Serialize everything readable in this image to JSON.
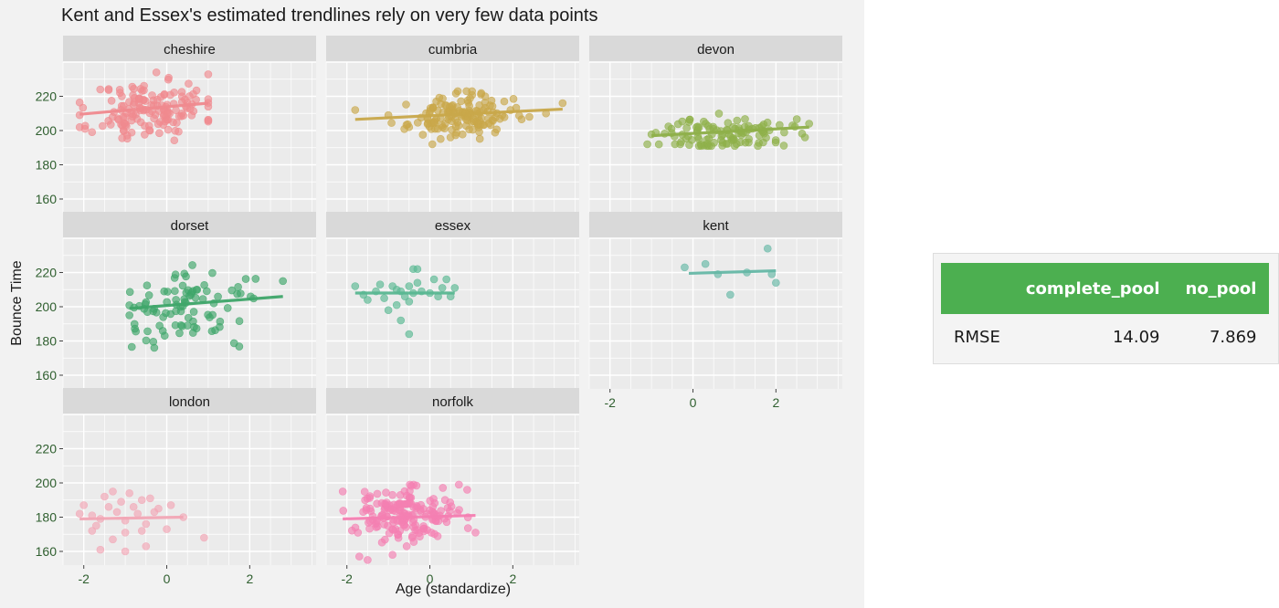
{
  "chart_data": {
    "type": "scatter",
    "title": "Kent and Essex's estimated trendlines rely on very few data points",
    "xlabel": "Age (standardize)",
    "ylabel": "Bounce Time",
    "xlim": [
      -2.5,
      3.6
    ],
    "ylim": [
      152,
      240
    ],
    "xticks": [
      -2,
      0,
      2
    ],
    "yticks": [
      160,
      180,
      200,
      220
    ],
    "grid": true,
    "facets": [
      {
        "name": "cheshire",
        "color": "#f08a8f",
        "trend": [
          [
            -2.1,
            209.5
          ],
          [
            1.0,
            216
          ]
        ],
        "cloud": {
          "n": 150,
          "cx": -0.4,
          "sx": 0.7,
          "ymin": 190,
          "ymax": 234,
          "by": 212,
          "slope": 2.1,
          "sy": 9,
          "seed": 11
        },
        "points": []
      },
      {
        "name": "cumbria",
        "color": "#c9a84a",
        "trend": [
          [
            -1.8,
            206.5
          ],
          [
            3.2,
            212.5
          ]
        ],
        "cloud": {
          "n": 150,
          "cx": 0.7,
          "sx": 0.6,
          "ymin": 192,
          "ymax": 223,
          "by": 208,
          "slope": 1.2,
          "sy": 6,
          "seed": 23
        },
        "points": [
          [
            -1.8,
            212
          ],
          [
            -1.0,
            209
          ],
          [
            -0.5,
            202
          ],
          [
            3.2,
            216
          ],
          [
            2.8,
            210
          ],
          [
            2.4,
            208
          ]
        ]
      },
      {
        "name": "devon",
        "color": "#8fb04a",
        "trend": [
          [
            -1.0,
            197
          ],
          [
            2.8,
            202
          ]
        ],
        "cloud": {
          "n": 110,
          "cx": 0.8,
          "sx": 0.8,
          "ymin": 191,
          "ymax": 212,
          "by": 198,
          "slope": 1.3,
          "sy": 5,
          "seed": 37
        },
        "points": [
          [
            -1.1,
            192
          ],
          [
            2.8,
            204
          ],
          [
            2.7,
            196
          ],
          [
            2.4,
            203
          ]
        ]
      },
      {
        "name": "dorset",
        "color": "#3fa66a",
        "trend": [
          [
            -0.9,
            199
          ],
          [
            2.8,
            206
          ]
        ],
        "cloud": {
          "n": 90,
          "cx": 0.6,
          "sx": 0.9,
          "ymin": 176,
          "ymax": 226,
          "by": 200,
          "slope": 2.0,
          "sy": 10,
          "seed": 41
        },
        "points": [
          [
            2.8,
            215
          ],
          [
            -0.9,
            195
          ],
          [
            -0.3,
            176
          ]
        ]
      },
      {
        "name": "essex",
        "color": "#59b892",
        "trend": [
          [
            -1.8,
            208
          ],
          [
            0.6,
            208
          ]
        ],
        "points": [
          [
            -1.8,
            212
          ],
          [
            -1.6,
            207
          ],
          [
            -1.5,
            204
          ],
          [
            -1.3,
            209
          ],
          [
            -1.2,
            213
          ],
          [
            -1.1,
            205
          ],
          [
            -1.0,
            198
          ],
          [
            -0.9,
            212
          ],
          [
            -0.8,
            210
          ],
          [
            -0.7,
            209
          ],
          [
            -0.7,
            192
          ],
          [
            -0.6,
            206
          ],
          [
            -0.5,
            212
          ],
          [
            -0.5,
            203
          ],
          [
            -0.4,
            208
          ],
          [
            -0.3,
            214
          ],
          [
            -0.4,
            222
          ],
          [
            -0.3,
            222
          ],
          [
            -0.5,
            184
          ],
          [
            -0.2,
            209
          ],
          [
            0.0,
            208
          ],
          [
            0.1,
            216
          ],
          [
            0.2,
            206
          ],
          [
            0.3,
            211
          ],
          [
            0.4,
            216
          ],
          [
            0.5,
            206
          ],
          [
            0.6,
            211
          ],
          [
            -0.8,
            201
          ]
        ]
      },
      {
        "name": "kent",
        "color": "#66b8a6",
        "trend": [
          [
            -0.1,
            219.5
          ],
          [
            2.0,
            221
          ]
        ],
        "points": [
          [
            -0.2,
            223
          ],
          [
            0.3,
            225
          ],
          [
            0.6,
            219
          ],
          [
            1.3,
            220
          ],
          [
            1.8,
            234
          ],
          [
            1.9,
            219
          ],
          [
            2.0,
            214
          ],
          [
            0.9,
            207
          ]
        ]
      },
      {
        "name": "london",
        "color": "#f2a6b5",
        "trend": [
          [
            -2.1,
            179
          ],
          [
            0.4,
            180
          ]
        ],
        "points": [
          [
            -2.1,
            182
          ],
          [
            -2.0,
            187
          ],
          [
            -1.8,
            181
          ],
          [
            -1.7,
            175
          ],
          [
            -1.6,
            179
          ],
          [
            -1.5,
            192
          ],
          [
            -1.4,
            186
          ],
          [
            -1.3,
            195
          ],
          [
            -1.2,
            183
          ],
          [
            -1.1,
            189
          ],
          [
            -1.0,
            178
          ],
          [
            -1.0,
            171
          ],
          [
            -0.9,
            194
          ],
          [
            -0.8,
            186
          ],
          [
            -0.7,
            182
          ],
          [
            -0.6,
            172
          ],
          [
            -0.6,
            190
          ],
          [
            -0.5,
            176
          ],
          [
            -0.4,
            191
          ],
          [
            -0.3,
            183
          ],
          [
            -0.2,
            185
          ],
          [
            0.0,
            173
          ],
          [
            0.1,
            187
          ],
          [
            -1.6,
            161
          ],
          [
            -1.3,
            167
          ],
          [
            -1.0,
            160
          ],
          [
            -0.5,
            163
          ],
          [
            0.9,
            168
          ],
          [
            -1.8,
            172
          ],
          [
            0.4,
            180
          ]
        ]
      },
      {
        "name": "norfolk",
        "color": "#f57fb2",
        "trend": [
          [
            -2.1,
            179
          ],
          [
            1.1,
            181
          ]
        ],
        "cloud": {
          "n": 170,
          "cx": -0.6,
          "sx": 0.6,
          "ymin": 163,
          "ymax": 199,
          "by": 181,
          "slope": 0.6,
          "sy": 7,
          "seed": 59
        },
        "points": [
          [
            -1.7,
            157
          ],
          [
            -1.5,
            155
          ],
          [
            -0.9,
            158
          ],
          [
            0.7,
            199
          ],
          [
            0.9,
            196
          ],
          [
            1.1,
            171
          ]
        ]
      }
    ]
  },
  "table": {
    "headers": [
      "",
      "complete_pool",
      "no_pool"
    ],
    "rows": [
      [
        "RMSE",
        "14.09",
        "7.869"
      ]
    ]
  }
}
